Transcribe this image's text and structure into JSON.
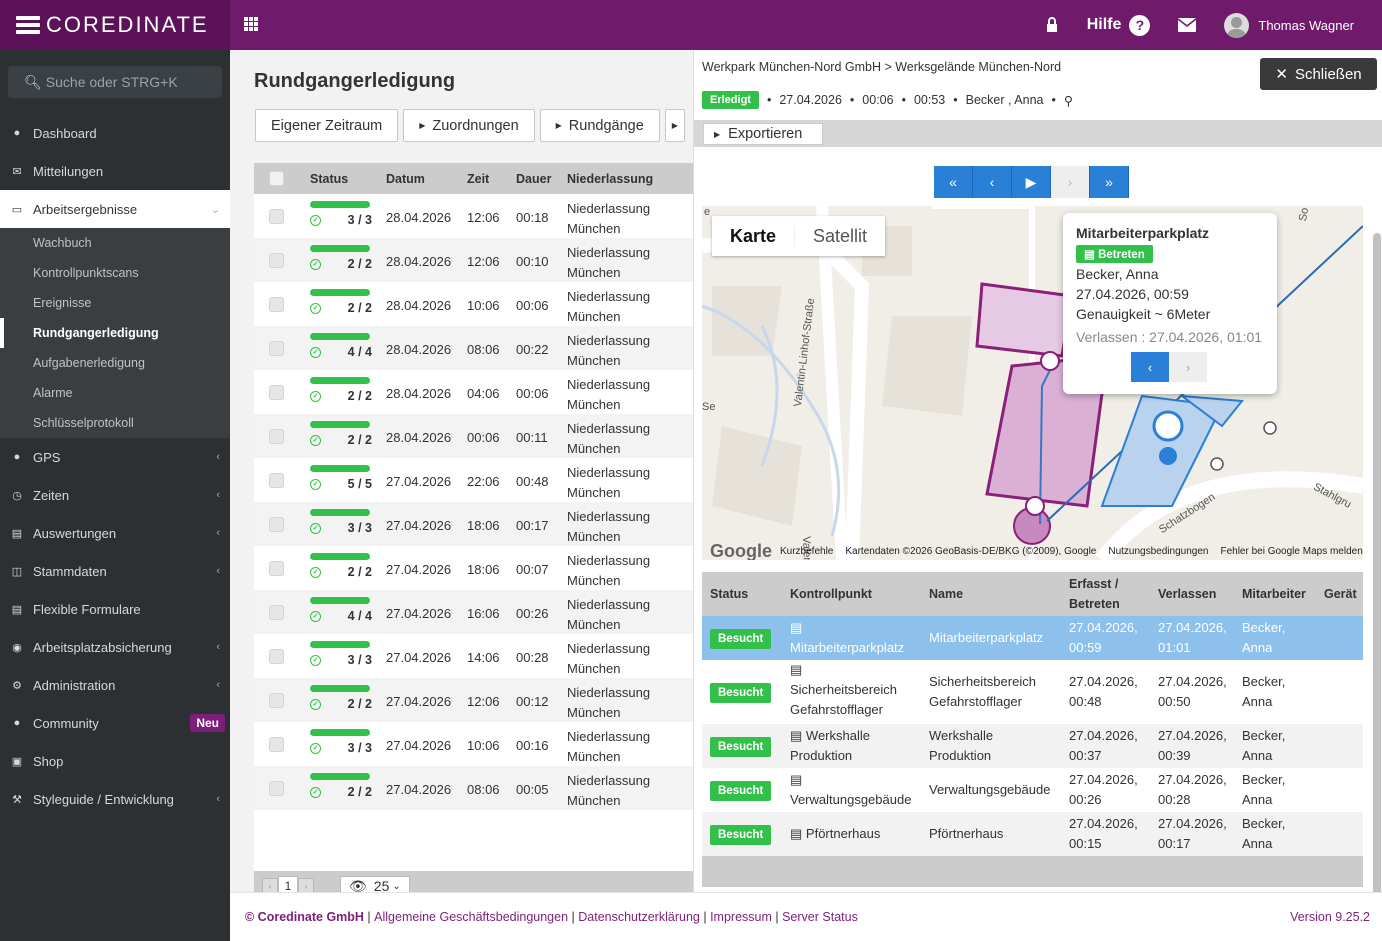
{
  "brand": {
    "name": "COREDINATE"
  },
  "topbar": {
    "help_label": "Hilfe",
    "user_name": "Thomas Wagner"
  },
  "sidebar": {
    "search_placeholder": "Suche oder STRG+K",
    "items": [
      {
        "label": "Dashboard",
        "icon": "dashboard-icon"
      },
      {
        "label": "Mitteilungen",
        "icon": "envelope-icon"
      },
      {
        "label": "Arbeitsergebnisse",
        "icon": "desktop-icon"
      },
      {
        "label": "GPS",
        "icon": "map-marker-icon"
      },
      {
        "label": "Zeiten",
        "icon": "clock-icon"
      },
      {
        "label": "Auswertungen",
        "icon": "chart-icon"
      },
      {
        "label": "Stammdaten",
        "icon": "database-icon"
      },
      {
        "label": "Flexible Formulare",
        "icon": "form-icon"
      },
      {
        "label": "Arbeitsplatzabsicherung",
        "icon": "globe-icon"
      },
      {
        "label": "Administration",
        "icon": "gears-icon"
      },
      {
        "label": "Community",
        "icon": "comments-icon",
        "badge": "Neu"
      },
      {
        "label": "Shop",
        "icon": "cart-icon"
      },
      {
        "label": "Styleguide / Entwicklung",
        "icon": "wrench-icon"
      }
    ],
    "sub_items": [
      "Wachbuch",
      "Kontrollpunktscans",
      "Ereignisse",
      "Rundgangerledigung",
      "Aufgabenerledigung",
      "Alarme",
      "Schlüsselprotokoll"
    ]
  },
  "main": {
    "title": "Rundgangerledigung",
    "buttons": [
      "Eigener Zeitraum",
      "Zuordnungen",
      "Rundgänge"
    ],
    "columns": [
      "Status",
      "Datum",
      "Zeit",
      "Dauer",
      "Niederlassung"
    ],
    "rows": [
      {
        "status": "3 / 3",
        "progress": 1,
        "date": "28.04.2026",
        "time": "12:06",
        "dur": "00:18",
        "branch1": "Niederlassung",
        "branch2": "München"
      },
      {
        "status": "2 / 2",
        "progress": 1,
        "date": "28.04.2026",
        "time": "12:06",
        "dur": "00:10",
        "branch1": "Niederlassung",
        "branch2": "München"
      },
      {
        "status": "2 / 2",
        "progress": 1,
        "date": "28.04.2026",
        "time": "10:06",
        "dur": "00:06",
        "branch1": "Niederlassung",
        "branch2": "München"
      },
      {
        "status": "4 / 4",
        "progress": 1,
        "date": "28.04.2026",
        "time": "08:06",
        "dur": "00:22",
        "branch1": "Niederlassung",
        "branch2": "München"
      },
      {
        "status": "2 / 2",
        "progress": 1,
        "date": "28.04.2026",
        "time": "04:06",
        "dur": "00:06",
        "branch1": "Niederlassung",
        "branch2": "München"
      },
      {
        "status": "2 / 2",
        "progress": 1,
        "date": "28.04.2026",
        "time": "00:06",
        "dur": "00:11",
        "branch1": "Niederlassung",
        "branch2": "München"
      },
      {
        "status": "5 / 5",
        "progress": 1,
        "date": "27.04.2026",
        "time": "22:06",
        "dur": "00:48",
        "branch1": "Niederlassung",
        "branch2": "München"
      },
      {
        "status": "3 / 3",
        "progress": 1,
        "date": "27.04.2026",
        "time": "18:06",
        "dur": "00:17",
        "branch1": "Niederlassung",
        "branch2": "München"
      },
      {
        "status": "2 / 2",
        "progress": 1,
        "date": "27.04.2026",
        "time": "18:06",
        "dur": "00:07",
        "branch1": "Niederlassung",
        "branch2": "München"
      },
      {
        "status": "4 / 4",
        "progress": 1,
        "date": "27.04.2026",
        "time": "16:06",
        "dur": "00:26",
        "branch1": "Niederlassung",
        "branch2": "München"
      },
      {
        "status": "3 / 3",
        "progress": 1,
        "date": "27.04.2026",
        "time": "14:06",
        "dur": "00:28",
        "branch1": "Niederlassung",
        "branch2": "München"
      },
      {
        "status": "2 / 2",
        "progress": 1,
        "date": "27.04.2026",
        "time": "12:06",
        "dur": "00:12",
        "branch1": "Niederlassung",
        "branch2": "München"
      },
      {
        "status": "3 / 3",
        "progress": 1,
        "date": "27.04.2026",
        "time": "10:06",
        "dur": "00:16",
        "branch1": "Niederlassung",
        "branch2": "München"
      },
      {
        "status": "2 / 2",
        "progress": 1,
        "date": "27.04.2026",
        "time": "08:06",
        "dur": "00:05",
        "branch1": "Niederlassung",
        "branch2": "München"
      }
    ],
    "pager": {
      "page": "1",
      "page_size": "25"
    }
  },
  "detail": {
    "breadcrumb": "Werkpark München-Nord GmbH > Werksgelände München-Nord",
    "close_label": "Schließen",
    "status": "Erledigt",
    "date": "27.04.2026",
    "start": "00:06",
    "duration": "00:53",
    "person": "Becker , Anna",
    "export_label": "Exportieren",
    "map": {
      "tab_map": "Karte",
      "tab_sat": "Satellit",
      "street1": "Valentin-Linhof-Straße",
      "street2": "Schatzbogen",
      "street3": "Stahlgru",
      "street4": "Valenti",
      "edge_se": "Se",
      "edge_e": "e",
      "edge_so": "So",
      "popup": {
        "title": "Mitarbeiterparkplatz",
        "badge": "Betreten",
        "person": "Becker, Anna",
        "time": "27.04.2026, 00:59",
        "accuracy": "Genauigkeit ~ 6Meter",
        "leave": "Verlassen : 27.04.2026, 01:01"
      },
      "google": "Google",
      "footer": [
        "Kurzbefehle",
        "Kartendaten ©2026 GeoBasis-DE/BKG (©2009), Google",
        "Nutzungsbedingungen",
        "Fehler bei Google Maps melden"
      ]
    },
    "columns": [
      "Status",
      "Kontrollpunkt",
      "Name",
      "Erfasst /",
      "Betreten",
      "Verlassen",
      "Mitarbeiter",
      "Gerät"
    ],
    "rows": [
      {
        "status": "Besucht",
        "cp": "Mitarbeiterparkplatz",
        "name1": "Mitarbeiterparkplatz",
        "name2": "",
        "in1": "27.04.2026,",
        "in2": "00:59",
        "out1": "27.04.2026,",
        "out2": "01:01",
        "emp1": "Becker,",
        "emp2": "Anna"
      },
      {
        "status": "Besucht",
        "cp": "Sicherheitsbereich Gefahrstofflager",
        "name1": "Sicherheitsbereich",
        "name2": "Gefahrstofflager",
        "in1": "27.04.2026,",
        "in2": "00:48",
        "out1": "27.04.2026,",
        "out2": "00:50",
        "emp1": "Becker,",
        "emp2": "Anna"
      },
      {
        "status": "Besucht",
        "cp": "Werkshalle Produktion",
        "name1": "Werkshalle",
        "name2": "Produktion",
        "in1": "27.04.2026,",
        "in2": "00:37",
        "out1": "27.04.2026,",
        "out2": "00:39",
        "emp1": "Becker,",
        "emp2": "Anna"
      },
      {
        "status": "Besucht",
        "cp": "Verwaltungsgebäude",
        "name1": "Verwaltungsgebäude",
        "name2": "",
        "in1": "27.04.2026,",
        "in2": "00:26",
        "out1": "27.04.2026,",
        "out2": "00:28",
        "emp1": "Becker,",
        "emp2": "Anna"
      },
      {
        "status": "Besucht",
        "cp": "Pförtnerhaus",
        "name1": "Pförtnerhaus",
        "name2": "",
        "in1": "27.04.2026,",
        "in2": "00:15",
        "out1": "27.04.2026,",
        "out2": "00:17",
        "emp1": "Becker,",
        "emp2": "Anna"
      }
    ]
  },
  "footer": {
    "company": "© Coredinate GmbH",
    "links": [
      "Allgemeine Geschäftsbedingungen",
      "Datenschutzerklärung",
      "Impressum",
      "Server Status"
    ],
    "version": "Version 9.25.2"
  },
  "colors": {
    "brand": "#6f1a6b",
    "success": "#33c04a",
    "primary": "#2a7fd6"
  }
}
